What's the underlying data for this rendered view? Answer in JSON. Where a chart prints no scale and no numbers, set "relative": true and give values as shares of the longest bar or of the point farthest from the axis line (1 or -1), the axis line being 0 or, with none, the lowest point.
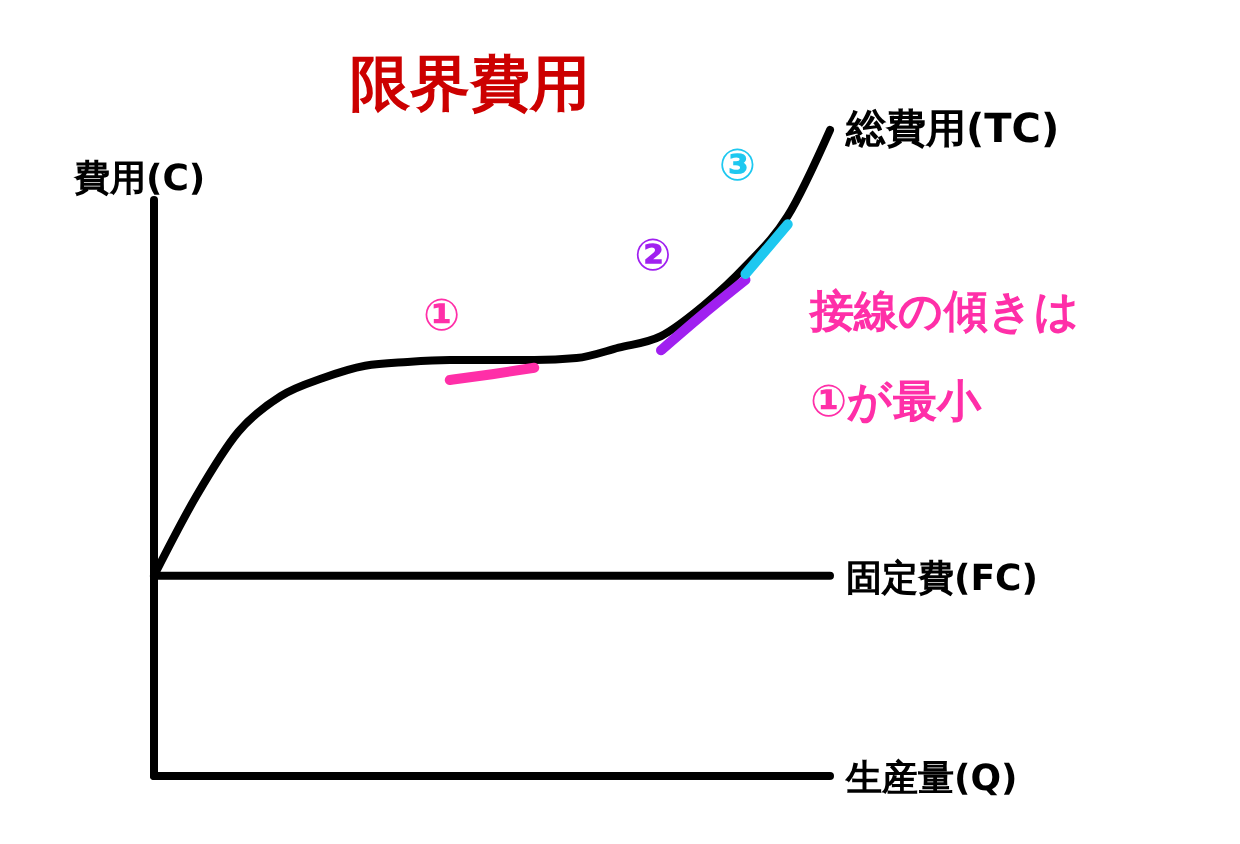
{
  "chart_data": {
    "type": "line",
    "title": "限界費用",
    "xlabel": "生産量(Q)",
    "ylabel": "費用(C)",
    "relative": true,
    "categories": [
      null,
      null,
      null,
      null,
      null,
      null,
      null,
      null,
      null,
      null,
      null,
      null,
      null,
      null,
      null,
      null,
      null
    ],
    "series": [
      {
        "name": "総費用(TC)",
        "color": "#000000",
        "values": [
          0.31,
          0.433,
          0.533,
          0.588,
          0.616,
          0.635,
          0.641,
          0.644,
          0.644,
          0.644,
          0.647,
          0.663,
          0.681,
          0.728,
          0.789,
          0.867,
          1
        ]
      },
      {
        "name": "①",
        "color": "#ff2fa8",
        "values": [
          null,
          null,
          null,
          null,
          null,
          null,
          null,
          0.613,
          0.622,
          0.632,
          null,
          null,
          null,
          null,
          null,
          null,
          null
        ]
      },
      {
        "name": "②",
        "color": "#a020f0",
        "values": [
          null,
          null,
          null,
          null,
          null,
          null,
          null,
          null,
          null,
          null,
          null,
          null,
          0.659,
          0.715,
          0.768,
          null,
          null
        ]
      },
      {
        "name": "③",
        "color": "#1ec8f0",
        "values": [
          null,
          null,
          null,
          null,
          null,
          null,
          null,
          null,
          null,
          null,
          null,
          null,
          null,
          null,
          0.777,
          0.854,
          null
        ]
      }
    ],
    "ref_lines": [
      {
        "axis": "y",
        "value": 0.31,
        "label": "固定費(FC)",
        "color": "#000000"
      }
    ],
    "annotations": [
      "接線の傾きは①が最小"
    ],
    "marker": "none",
    "line_style": "solid"
  }
}
